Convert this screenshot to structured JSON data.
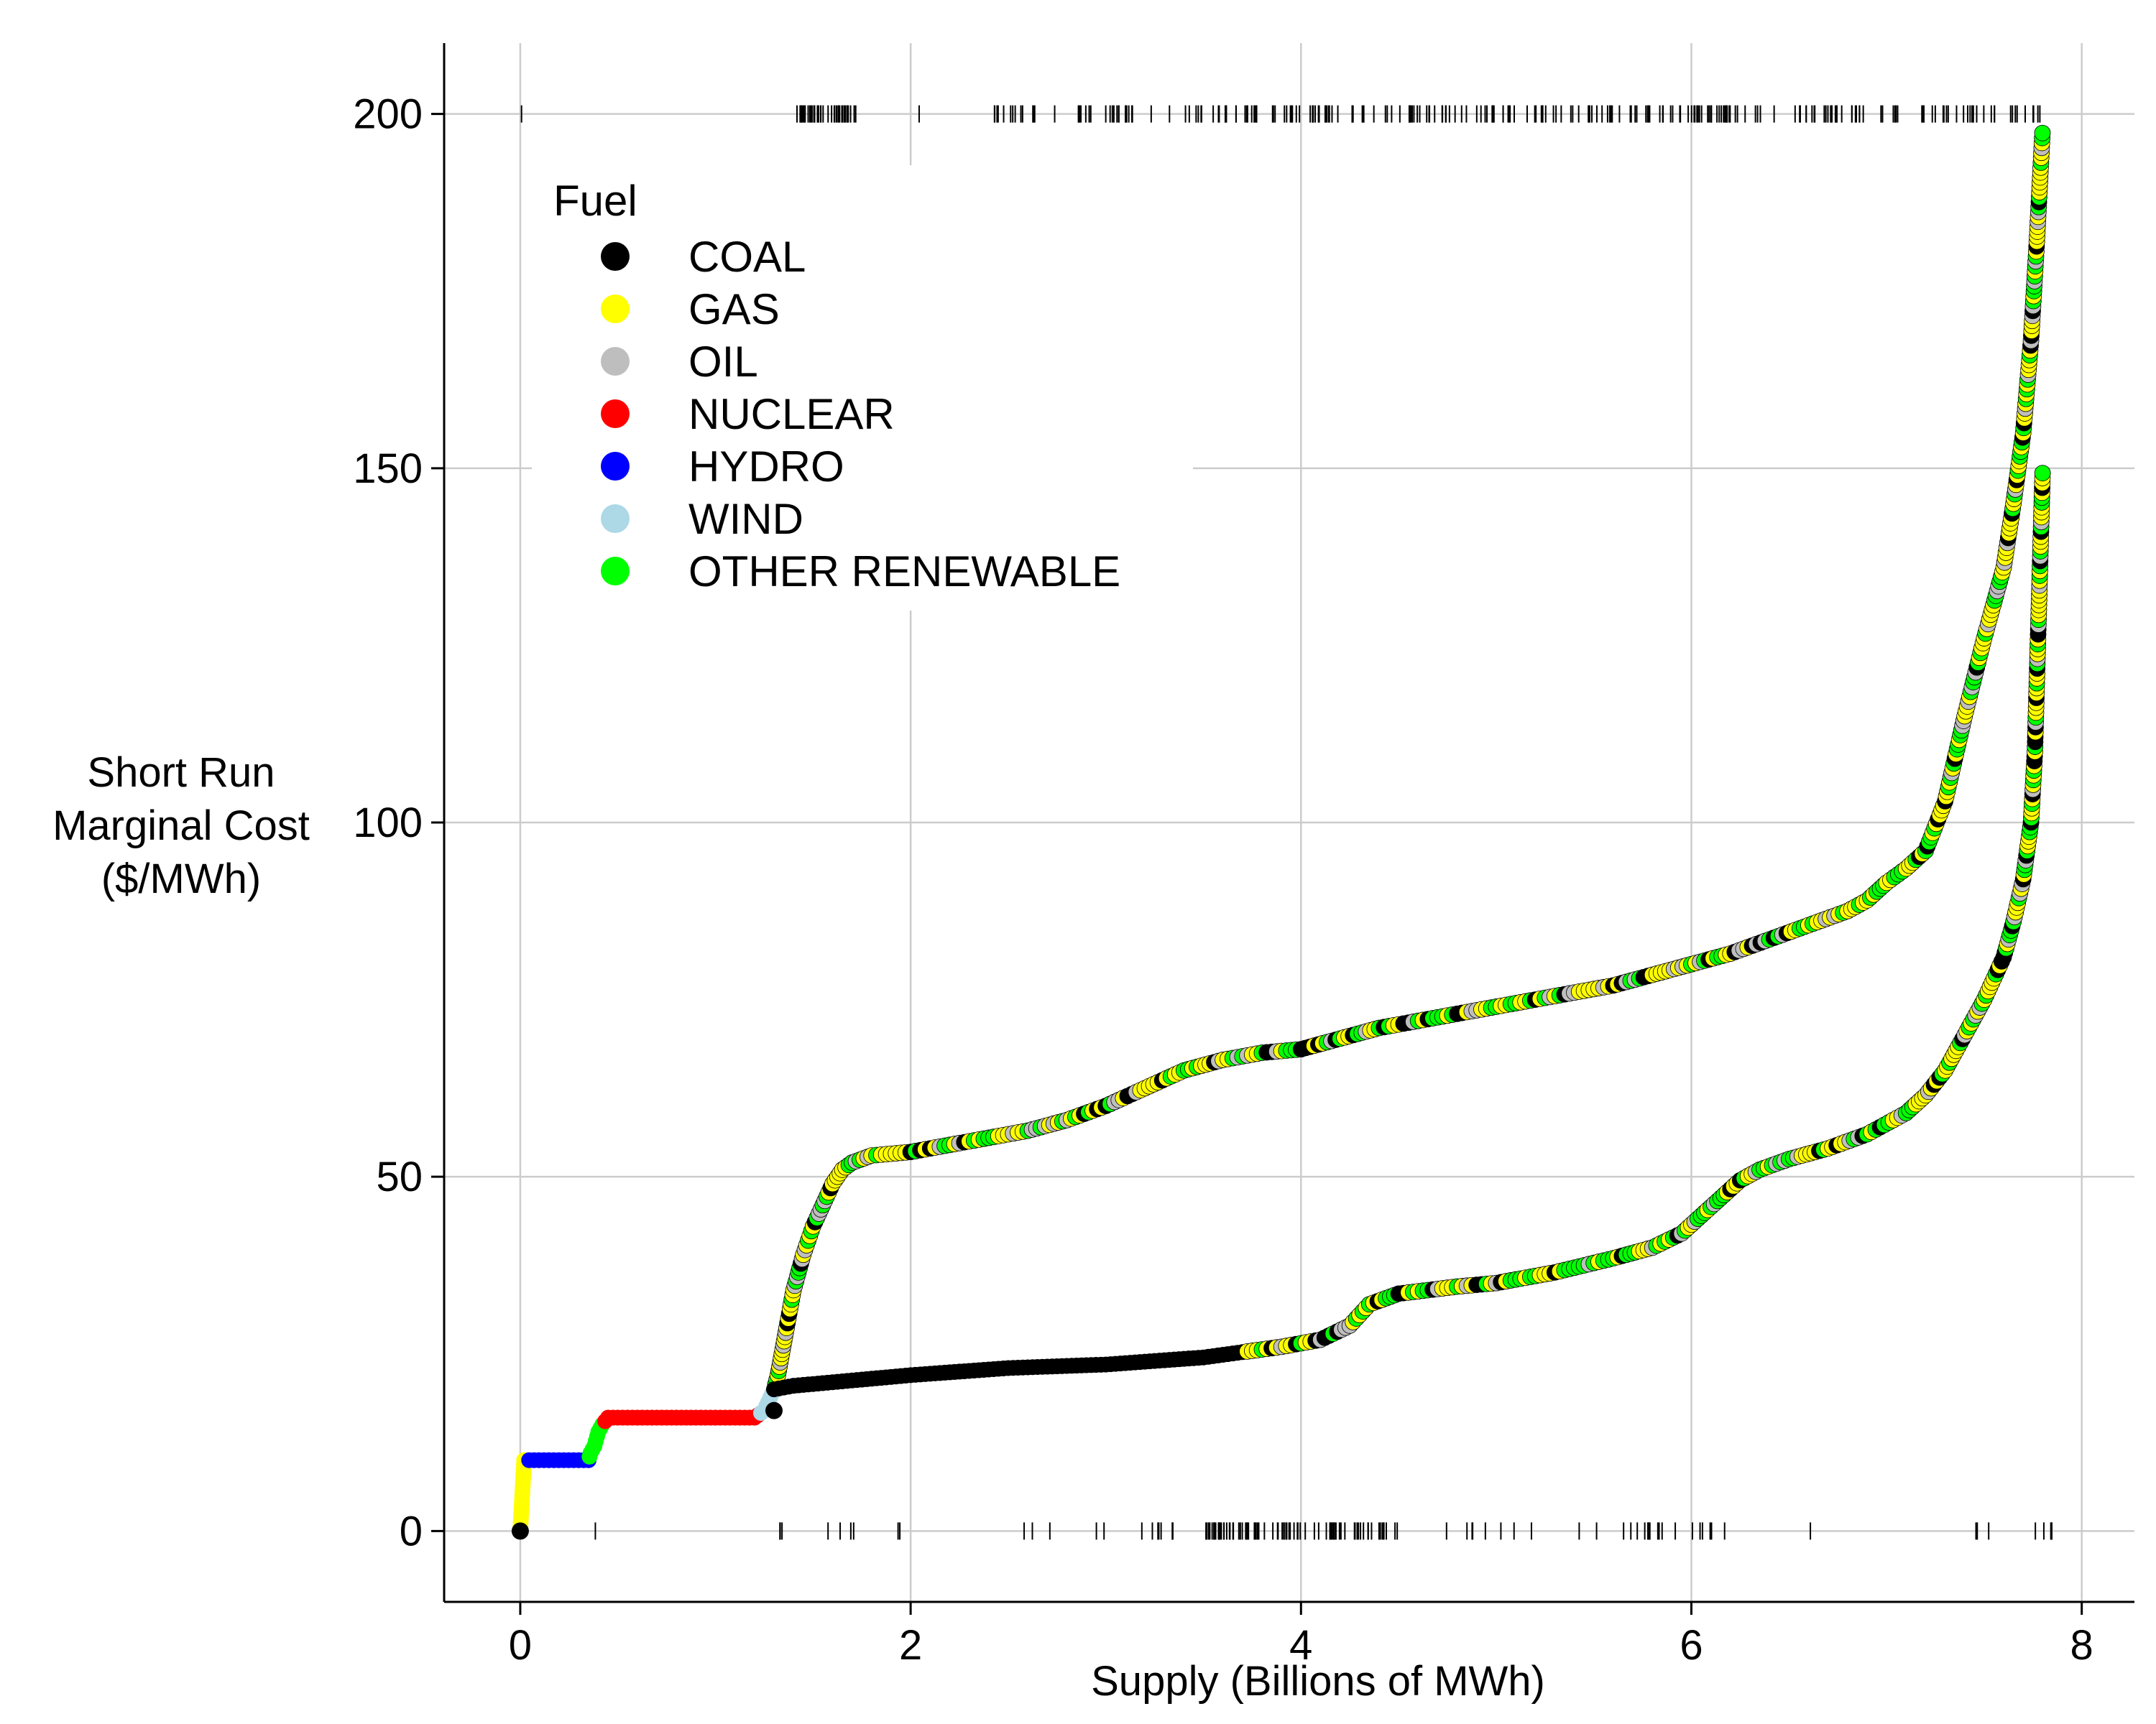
{
  "chart_data": {
    "type": "scatter",
    "title": "",
    "xlabel": "Supply (Billions of MWh)",
    "ylabel": [
      "Short Run",
      "Marginal Cost",
      "($/MWh)"
    ],
    "xlim": [
      -0.39,
      8.27
    ],
    "ylim": [
      -10,
      210
    ],
    "xticks": [
      0,
      2,
      4,
      6,
      8
    ],
    "yticks": [
      0,
      50,
      100,
      150,
      200
    ],
    "grid": true,
    "legend": {
      "title": "Fuel",
      "position": "top-left",
      "entries": [
        "COAL",
        "GAS",
        "OIL",
        "NUCLEAR",
        "HYDRO",
        "WIND",
        "OTHER RENEWABLE"
      ]
    },
    "colors": {
      "COAL": "#000000",
      "GAS": "#ffff00",
      "OIL": "#bebebe",
      "NUCLEAR": "#ff0000",
      "HYDRO": "#0000ff",
      "WIND": "#add8e6",
      "OTHER RENEWABLE": "#00ff00"
    },
    "series": [
      {
        "curve": "upper",
        "x": [
          0,
          0.01,
          0.02,
          0.35,
          0.36,
          0.38,
          0.4,
          0.42,
          0.45,
          1.2,
          1.25,
          1.3,
          1.32,
          1.34,
          1.36,
          1.4,
          1.45,
          1.5,
          1.55,
          1.6,
          1.65,
          1.7,
          1.8,
          2.0,
          2.2,
          2.4,
          2.6,
          2.8,
          3.0,
          3.2,
          3.4,
          3.6,
          3.8,
          4.0,
          4.2,
          4.4,
          4.6,
          4.8,
          5.0,
          5.2,
          5.4,
          5.6,
          5.8,
          6.0,
          6.2,
          6.4,
          6.6,
          6.8,
          6.9,
          7.0,
          7.1,
          7.2,
          7.3,
          7.4,
          7.5,
          7.6,
          7.65,
          7.7,
          7.74,
          7.77,
          7.8
        ],
        "y": [
          0,
          5,
          10,
          10,
          11,
          12,
          14,
          15,
          16,
          16,
          17,
          20,
          22,
          25,
          28,
          34,
          39,
          43,
          46,
          49,
          51,
          52,
          53,
          53.5,
          54.5,
          55.5,
          56.5,
          58,
          60,
          62.5,
          65,
          66.5,
          67.5,
          68,
          69.5,
          71,
          72,
          73,
          74,
          75,
          76,
          77,
          78.5,
          80,
          81.5,
          83.5,
          85.5,
          87.5,
          89,
          91.5,
          93.5,
          96,
          103,
          115,
          126,
          136,
          145,
          155,
          168,
          182,
          198
        ],
        "fuel_bands": [
          {
            "x0": 0,
            "x1": 0.02,
            "fuel": "GAS"
          },
          {
            "x0": 0.02,
            "x1": 0.35,
            "fuel": "HYDRO"
          },
          {
            "x0": 0.35,
            "x1": 0.42,
            "fuel": "OTHER RENEWABLE"
          },
          {
            "x0": 0.42,
            "x1": 1.22,
            "fuel": "NUCLEAR"
          },
          {
            "x0": 1.22,
            "x1": 1.3,
            "fuel": "WIND"
          },
          {
            "x0": 1.3,
            "x1": 7.8,
            "fuel": "MIXED"
          }
        ]
      },
      {
        "curve": "lower",
        "x": [
          1.3,
          1.4,
          1.6,
          1.8,
          2.0,
          2.5,
          3.0,
          3.5,
          3.9,
          4.1,
          4.25,
          4.35,
          4.5,
          4.8,
          5.0,
          5.3,
          5.6,
          5.8,
          5.95,
          6.05,
          6.15,
          6.25,
          6.35,
          6.5,
          6.7,
          6.9,
          7.1,
          7.2,
          7.3,
          7.4,
          7.5,
          7.6,
          7.65,
          7.7,
          7.74,
          7.76,
          7.78,
          7.8
        ],
        "y": [
          20,
          20.5,
          21,
          21.5,
          22,
          23,
          23.5,
          24.5,
          26,
          27,
          29,
          32,
          33.5,
          34.5,
          35,
          36.5,
          38.5,
          40,
          42,
          44.5,
          47,
          49.5,
          51,
          52.5,
          54,
          56,
          59,
          61.5,
          65,
          70,
          75,
          81,
          86,
          92,
          100,
          110,
          130,
          150
        ],
        "fuel_bands": [
          {
            "x0": 1.3,
            "x1": 3.7,
            "fuel": "COAL"
          },
          {
            "x0": 3.7,
            "x1": 7.8,
            "fuel": "MIXED"
          }
        ]
      }
    ],
    "rug": {
      "top_y": 200,
      "bottom_y": 0
    }
  }
}
